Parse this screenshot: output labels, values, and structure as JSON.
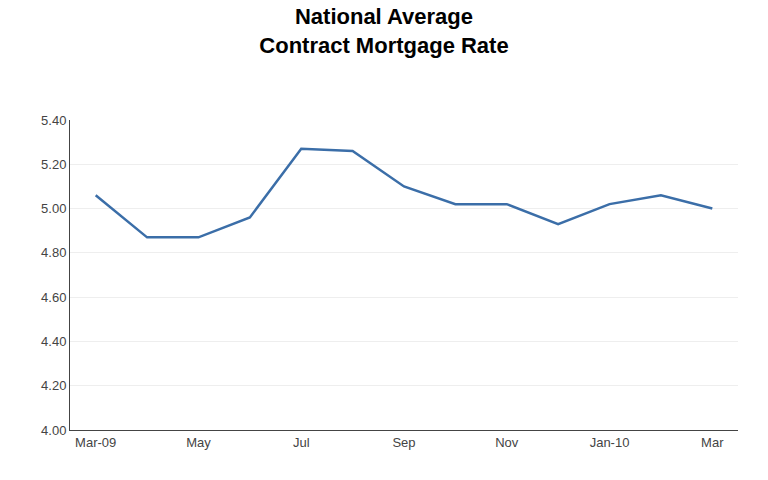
{
  "chart_data": {
    "type": "line",
    "title": "National Average\nContract Mortgage Rate",
    "categories": [
      "Mar-09",
      null,
      "May",
      null,
      "Jul",
      null,
      "Sep",
      null,
      "Nov",
      null,
      "Jan-10",
      null,
      "Mar"
    ],
    "values": [
      5.06,
      4.87,
      4.87,
      4.96,
      5.27,
      5.26,
      5.1,
      5.02,
      5.02,
      4.93,
      5.02,
      5.06,
      5.0
    ],
    "color": "#3B6EA8",
    "ylim": [
      4.0,
      5.4
    ],
    "yticks": [
      {
        "value": 4.0,
        "label": "4.00"
      },
      {
        "value": 4.2,
        "label": "4.20"
      },
      {
        "value": 4.4,
        "label": "4.40"
      },
      {
        "value": 4.6,
        "label": "4.60"
      },
      {
        "value": 4.8,
        "label": "4.80"
      },
      {
        "value": 5.0,
        "label": "5.00"
      },
      {
        "value": 5.2,
        "label": "5.20"
      },
      {
        "value": 5.4,
        "label": "5.40"
      }
    ],
    "grid": true
  }
}
